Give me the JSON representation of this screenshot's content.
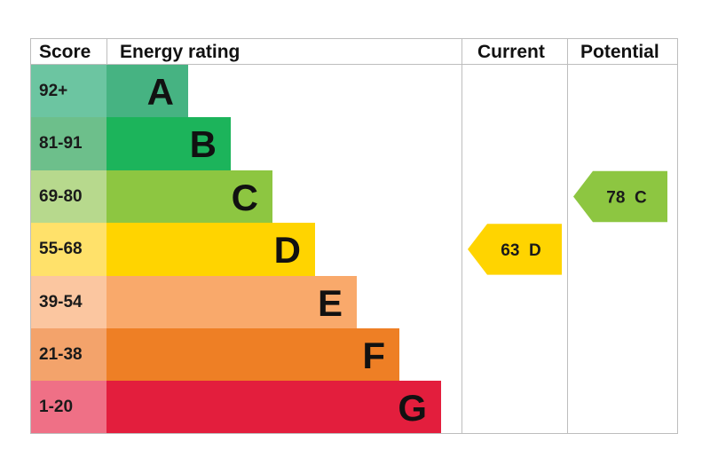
{
  "chart_data": {
    "type": "table",
    "headers": {
      "score": "Score",
      "rating": "Energy rating",
      "current": "Current",
      "potential": "Potential"
    },
    "bands": [
      {
        "range": "92+",
        "letter": "A",
        "color": "#46b382",
        "score_color": "#6cc5a1"
      },
      {
        "range": "81-91",
        "letter": "B",
        "color": "#1cb45b",
        "score_color": "#6dbf8b"
      },
      {
        "range": "69-80",
        "letter": "C",
        "color": "#8dc641",
        "score_color": "#b7d98d"
      },
      {
        "range": "55-68",
        "letter": "D",
        "color": "#ffd400",
        "score_color": "#ffe16a"
      },
      {
        "range": "39-54",
        "letter": "E",
        "color": "#f9a96b",
        "score_color": "#fbc6a0"
      },
      {
        "range": "21-38",
        "letter": "F",
        "color": "#ee7f25",
        "score_color": "#f3a36b"
      },
      {
        "range": "1-20",
        "letter": "G",
        "color": "#e31e3d",
        "score_color": "#ef7086"
      }
    ],
    "current": {
      "value": 63,
      "letter": "D",
      "label": "63  D",
      "color": "#ffd400"
    },
    "potential": {
      "value": 78,
      "letter": "C",
      "label": "78  C",
      "color": "#8dc641"
    }
  }
}
